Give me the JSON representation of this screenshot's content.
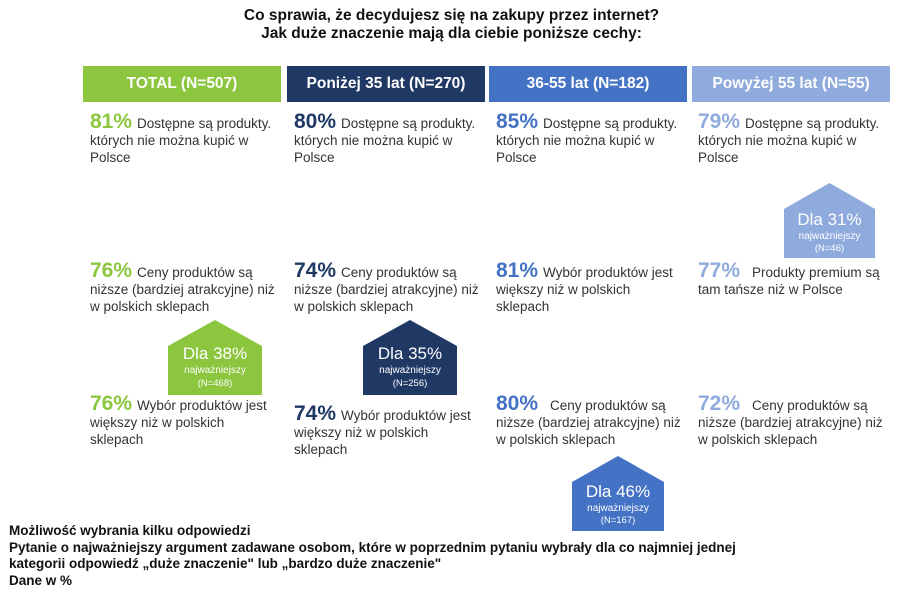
{
  "title": {
    "line1": "Co sprawia, że decydujesz się na zakupy przez internet?",
    "line2": "Jak duże znaczenie mają dla ciebie poniższe cechy:"
  },
  "colors": {
    "total": "#8cc63f",
    "young": "#1f3864",
    "middle": "#4472c4",
    "old": "#8faadc"
  },
  "chart_data": {
    "type": "table",
    "title": "Co sprawia, że decydujesz się na zakupy przez internet? Jak duże znaczenie mają dla ciebie poniższe cechy:",
    "unit": "%",
    "groups": [
      {
        "name": "TOTAL (N=507)",
        "items": [
          {
            "value": "81%",
            "label": "Dostępne są produkty. których nie można kupić w Polsce"
          },
          {
            "value": "76%",
            "label": "Ceny produktów są  niższe (bardziej atrakcyjne) niż w polskich sklepach"
          },
          {
            "value": "76%",
            "label": "Wybór produktów jest większy niż w polskich sklepach"
          }
        ],
        "most_important": {
          "value": "Dla 38%",
          "label": "najważniejszy",
          "n": "(N=468)"
        }
      },
      {
        "name": "Poniżej 35 lat (N=270)",
        "items": [
          {
            "value": "80%",
            "label": "Dostępne są produkty. których nie można kupić w Polsce"
          },
          {
            "value": "74%",
            "label": "Ceny produktów są  niższe (bardziej atrakcyjne) niż w polskich sklepach"
          },
          {
            "value": "74%",
            "label": "Wybór produktów jest większy niż w polskich sklepach"
          }
        ],
        "most_important": {
          "value": "Dla 35%",
          "label": "najważniejszy",
          "n": "(N=256)"
        }
      },
      {
        "name": "36-55 lat (N=182)",
        "items": [
          {
            "value": "85%",
            "label": "Dostępne są produkty. których nie można kupić w Polsce"
          },
          {
            "value": "81%",
            "label": "Wybór produktów jest większy niż w polskich sklepach"
          },
          {
            "value": "80%",
            "label": "Ceny produktów są  niższe (bardziej atrakcyjne) niż w polskich sklepach"
          }
        ],
        "most_important": {
          "value": "Dla 46%",
          "label": "najważniejszy",
          "n": "(N=167)"
        }
      },
      {
        "name": "Powyżej 55 lat (N=55)",
        "items": [
          {
            "value": "79%",
            "label": "Dostępne są produkty. których nie można kupić w Polsce"
          },
          {
            "value": "77%",
            "label": "Produkty premium są tam tańsze niż w Polsce"
          },
          {
            "value": "72%",
            "label": "Ceny produktów są  niższe (bardziej atrakcyjne) niż w polskich sklepach"
          }
        ],
        "most_important": {
          "value": "Dla 31%",
          "label": "najważniejszy",
          "n": "(N=46)"
        }
      }
    ]
  },
  "footnote": {
    "line1": "Możliwość wybrania kilku odpowiedzi",
    "line2": "Pytanie o najważniejszy argument zadawane osobom, które w poprzednim pytaniu wybrały dla co najmniej jednej",
    "line3": "kategorii odpowiedź „duże znaczenie\" lub „bardzo duże znaczenie\"",
    "line4": "Dane w %"
  }
}
